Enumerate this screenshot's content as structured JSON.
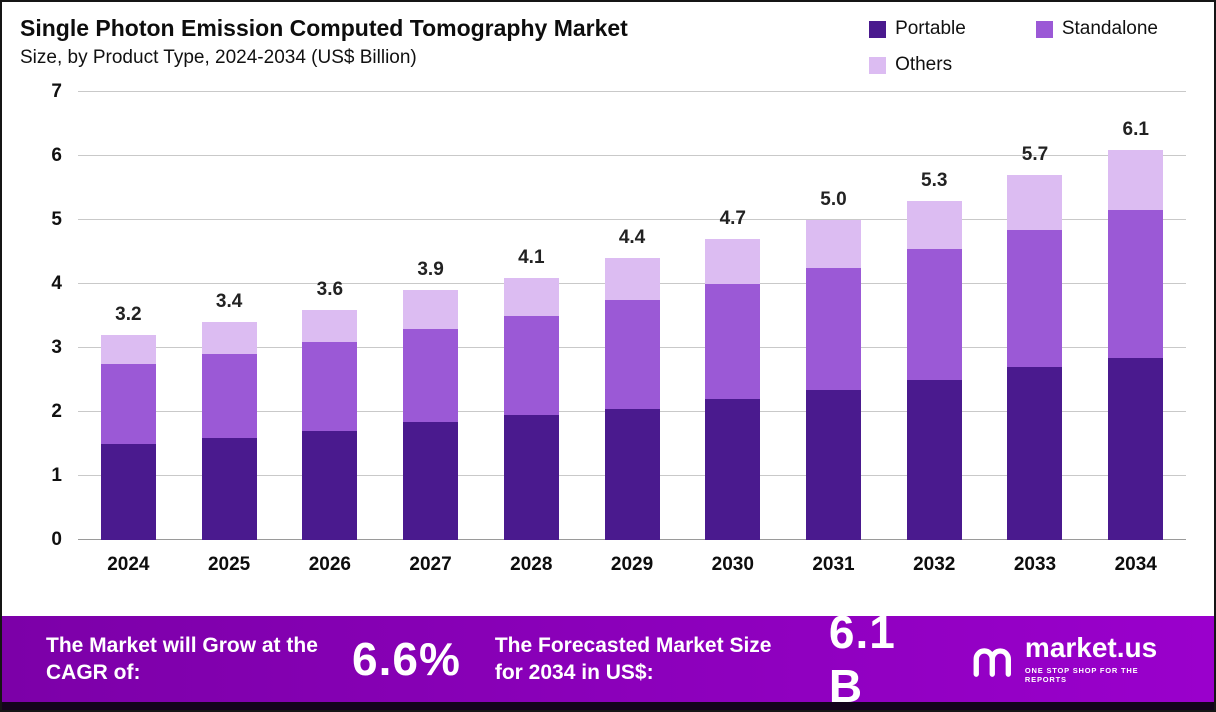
{
  "header": {
    "title": "Single Photon Emission Computed Tomography Market",
    "subtitle": "Size, by Product Type, 2024-2034 (US$ Billion)"
  },
  "legend": [
    {
      "label": "Portable",
      "color": "#4a1a8e"
    },
    {
      "label": "Standalone",
      "color": "#9b59d6"
    },
    {
      "label": "Others",
      "color": "#dcbcf2"
    }
  ],
  "chart_data": {
    "type": "bar",
    "stacked": true,
    "title": "Single Photon Emission Computed Tomography Market Size, by Product Type, 2024-2034 (US$ Billion)",
    "xlabel": "",
    "ylabel": "US$ Billion",
    "categories": [
      "2024",
      "2025",
      "2026",
      "2027",
      "2028",
      "2029",
      "2030",
      "2031",
      "2032",
      "2033",
      "2034"
    ],
    "series": [
      {
        "name": "Portable",
        "color": "#4a1a8e",
        "values": [
          1.5,
          1.6,
          1.7,
          1.85,
          1.95,
          2.05,
          2.2,
          2.35,
          2.5,
          2.7,
          2.85
        ]
      },
      {
        "name": "Standalone",
        "color": "#9b59d6",
        "values": [
          1.25,
          1.3,
          1.4,
          1.45,
          1.55,
          1.7,
          1.8,
          1.9,
          2.05,
          2.15,
          2.3
        ]
      },
      {
        "name": "Others",
        "color": "#dcbcf2",
        "values": [
          0.45,
          0.5,
          0.5,
          0.6,
          0.6,
          0.65,
          0.7,
          0.75,
          0.75,
          0.85,
          0.95
        ]
      }
    ],
    "totals": [
      3.2,
      3.4,
      3.6,
      3.9,
      4.1,
      4.4,
      4.7,
      5.0,
      5.3,
      5.7,
      6.1
    ],
    "total_labels": [
      "3.2",
      "3.4",
      "3.6",
      "3.9",
      "4.1",
      "4.4",
      "4.7",
      "5.0",
      "5.3",
      "5.7",
      "6.1"
    ],
    "ylim": [
      0,
      7
    ],
    "yticks": [
      0,
      1,
      2,
      3,
      4,
      5,
      6,
      7
    ],
    "grid": true,
    "legend_position": "top-right"
  },
  "footer": {
    "cagr_label": "The Market will Grow at the CAGR of:",
    "cagr_value": "6.6%",
    "forecast_label": "The Forecasted Market Size for 2034 in US$:",
    "forecast_value": "6.1 B",
    "brand": "market.us",
    "brand_tagline": "ONE STOP SHOP FOR THE REPORTS",
    "banner_color_left": "#7c00a8",
    "banner_color_right": "#9a00cc"
  }
}
